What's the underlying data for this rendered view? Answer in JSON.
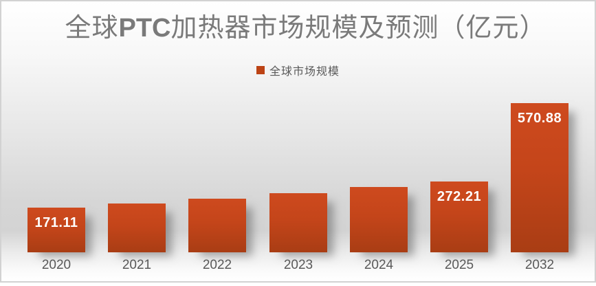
{
  "frame": {
    "border_color": "#D2D2D2"
  },
  "title": {
    "full": "全球PTC加热器市场规模及预测（亿元）",
    "prefix": "全球",
    "brand": "PTC",
    "suffix": "加热器市场规模及预测（亿元）",
    "color": "#7A7A7A"
  },
  "legend": {
    "label": "全球市场规模",
    "swatch_color": "#BC4315",
    "text_color": "#595959"
  },
  "chart_data": {
    "type": "bar",
    "title": "全球PTC加热器市场规模及预测（亿元）",
    "series_name": "全球市场规模",
    "categories": [
      "2020",
      "2021",
      "2022",
      "2023",
      "2024",
      "2025",
      "2032"
    ],
    "values": [
      171.11,
      187,
      205,
      226,
      250,
      272.21,
      570.88
    ],
    "data_labels": [
      "171.11",
      "",
      "",
      "",
      "",
      "272.21",
      "570.88"
    ],
    "estimated_indices": [
      1,
      2,
      3,
      4
    ],
    "xlabel": "",
    "ylabel": "",
    "ylim": [
      0,
      600
    ],
    "grid": false,
    "legend_position": "top",
    "bar_color_top": "#CE4A1E",
    "bar_color_bottom": "#A93D14",
    "data_label_color": "#FFFFFF",
    "axis_label_color": "#595959"
  }
}
